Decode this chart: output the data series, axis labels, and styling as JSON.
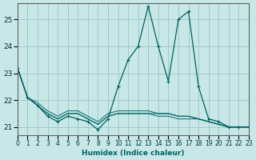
{
  "xlabel": "Humidex (Indice chaleur)",
  "ylabel": "",
  "bg_color": "#c8e8e8",
  "grid_color": "#a0c8c8",
  "line_color": "#006060",
  "xlim": [
    0,
    23
  ],
  "ylim": [
    20.7,
    25.6
  ],
  "x_ticks": [
    0,
    1,
    2,
    3,
    4,
    5,
    6,
    7,
    8,
    9,
    10,
    11,
    12,
    13,
    14,
    15,
    16,
    17,
    18,
    19,
    20,
    21,
    22,
    23
  ],
  "y_ticks": [
    21,
    22,
    23,
    24,
    25
  ],
  "series": [
    [
      23.2,
      22.1,
      21.8,
      21.4,
      21.2,
      21.4,
      21.3,
      21.2,
      20.9,
      21.3,
      22.5,
      23.5,
      24.0,
      25.5,
      24.0,
      22.7,
      25.0,
      25.3,
      22.5,
      21.3,
      21.2,
      21.0,
      21.0,
      21.0
    ],
    [
      23.2,
      22.1,
      21.8,
      21.5,
      21.3,
      21.5,
      21.5,
      21.3,
      21.1,
      21.4,
      21.5,
      21.5,
      21.5,
      21.5,
      21.4,
      21.4,
      21.3,
      21.3,
      21.3,
      21.2,
      21.1,
      21.0,
      21.0,
      21.0
    ],
    [
      23.2,
      22.1,
      21.8,
      21.5,
      21.3,
      21.5,
      21.5,
      21.3,
      21.1,
      21.4,
      21.5,
      21.5,
      21.5,
      21.5,
      21.5,
      21.5,
      21.4,
      21.4,
      21.3,
      21.2,
      21.1,
      21.0,
      21.0,
      21.0
    ],
    [
      23.2,
      22.1,
      21.9,
      21.6,
      21.4,
      21.6,
      21.6,
      21.4,
      21.2,
      21.5,
      21.6,
      21.6,
      21.6,
      21.6,
      21.5,
      21.5,
      21.4,
      21.4,
      21.3,
      21.2,
      21.1,
      21.0,
      21.0,
      21.0
    ]
  ]
}
